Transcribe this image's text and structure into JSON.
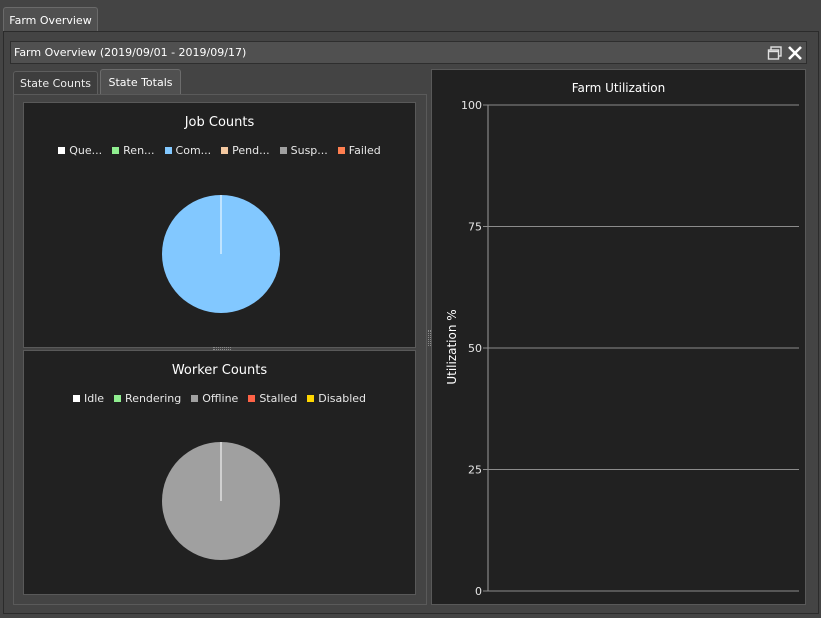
{
  "window": {
    "tab_label": "Farm Overview"
  },
  "panel": {
    "title": "Farm Overview (2019/09/01 - 2019/09/17)",
    "restore_icon": "restore-icon",
    "close_icon": "close-icon"
  },
  "tabs": [
    {
      "label": "State Counts",
      "selected": false
    },
    {
      "label": "State Totals",
      "selected": true
    }
  ],
  "job_counts": {
    "title": "Job Counts",
    "legend": [
      {
        "label": "Que...",
        "color": "#ffffff"
      },
      {
        "label": "Ren...",
        "color": "#90ee90"
      },
      {
        "label": "Com...",
        "color": "#82c8ff"
      },
      {
        "label": "Pend...",
        "color": "#f4c8a0"
      },
      {
        "label": "Susp...",
        "color": "#a0a0a0"
      },
      {
        "label": "Failed",
        "color": "#ff7f50"
      }
    ]
  },
  "worker_counts": {
    "title": "Worker Counts",
    "legend": [
      {
        "label": "Idle",
        "color": "#ffffff"
      },
      {
        "label": "Rendering",
        "color": "#90ee90"
      },
      {
        "label": "Offline",
        "color": "#a0a0a0"
      },
      {
        "label": "Stalled",
        "color": "#ff6347"
      },
      {
        "label": "Disabled",
        "color": "#ffd700"
      }
    ]
  },
  "chart_data": [
    {
      "type": "pie",
      "title": "Job Counts",
      "labels": [
        "Que...",
        "Ren...",
        "Com...",
        "Pend...",
        "Susp...",
        "Failed"
      ],
      "values": [
        0,
        0,
        100,
        0,
        0,
        0
      ],
      "colors": [
        "#ffffff",
        "#90ee90",
        "#82c8ff",
        "#f4c8a0",
        "#a0a0a0",
        "#ff7f50"
      ]
    },
    {
      "type": "pie",
      "title": "Worker Counts",
      "labels": [
        "Idle",
        "Rendering",
        "Offline",
        "Stalled",
        "Disabled"
      ],
      "values": [
        0,
        0,
        100,
        0,
        0
      ],
      "colors": [
        "#ffffff",
        "#90ee90",
        "#a0a0a0",
        "#ff6347",
        "#ffd700"
      ]
    },
    {
      "type": "line",
      "title": "Farm Utilization",
      "ylabel": "Utilization %",
      "xlabel": "",
      "ylim": [
        0,
        100
      ],
      "yticks": [
        "0",
        "25",
        "50",
        "75",
        "100"
      ],
      "series": []
    }
  ]
}
